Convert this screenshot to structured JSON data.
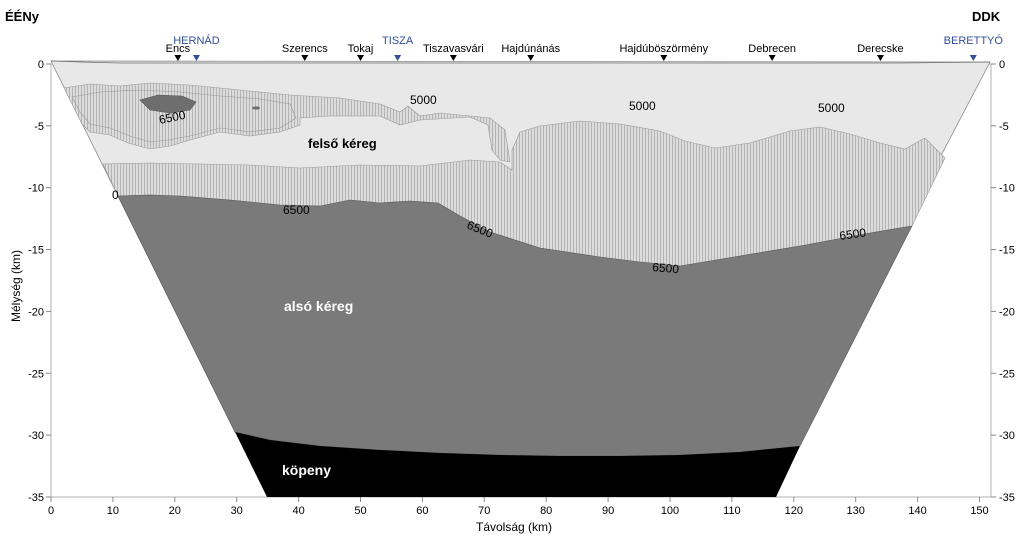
{
  "corners": {
    "left": "ÉÉNy",
    "right": "DDK"
  },
  "towns": [
    {
      "name": "Encs",
      "km": 20.5
    },
    {
      "name": "Szerencs",
      "km": 41
    },
    {
      "name": "Tokaj",
      "km": 50
    },
    {
      "name": "Tiszavasvári",
      "km": 65
    },
    {
      "name": "Hajdúnánás",
      "km": 77.5
    },
    {
      "name": "Hajdúböszörmény",
      "km": 99
    },
    {
      "name": "Debrecen",
      "km": 116.5
    },
    {
      "name": "Derecske",
      "km": 134
    }
  ],
  "rivers": [
    {
      "name": "HERNÁD",
      "km": 23.5
    },
    {
      "name": "TISZA",
      "km": 56
    },
    {
      "name": "BERETTYÓ",
      "km": 149
    }
  ],
  "x_axis": {
    "label": "Távolság  (km)",
    "min": 0,
    "max": 152,
    "ticks": [
      0,
      10,
      20,
      30,
      40,
      50,
      60,
      70,
      80,
      90,
      100,
      110,
      120,
      130,
      140,
      150
    ]
  },
  "y_axis": {
    "label": "Mélység (km)",
    "min": -35,
    "max": 0,
    "ticks": [
      0,
      -5,
      -10,
      -15,
      -20,
      -25,
      -30,
      -35
    ]
  },
  "contour_labels": [
    {
      "text": "5000"
    },
    {
      "text": "5000"
    },
    {
      "text": "5000"
    },
    {
      "text": "6500"
    },
    {
      "text": "6500"
    },
    {
      "text": "6500"
    },
    {
      "text": "6500"
    },
    {
      "text": "6500"
    },
    {
      "text": "0"
    }
  ],
  "layers": {
    "upper_crust": "felső kéreg",
    "lower_crust": "alsó kéreg",
    "mantle": "köpeny"
  },
  "colors": {
    "shallow": "#e6e6e6",
    "upper": "#d2d2d2",
    "lower": "#7a7a7a",
    "mantle": "#000000",
    "anomaly": "#6e6e6e",
    "river": "#2f4fa0"
  }
}
